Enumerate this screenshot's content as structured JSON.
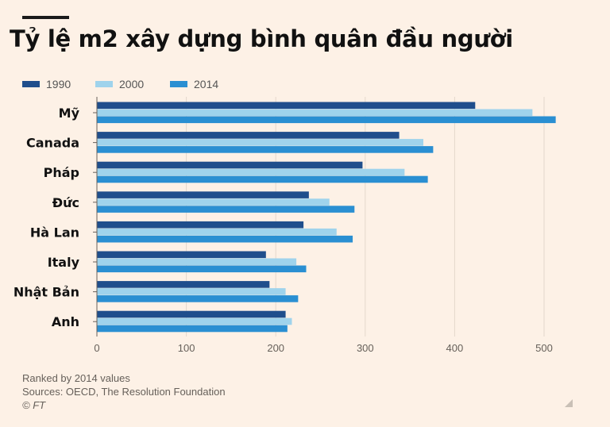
{
  "title": "Tỷ lệ m2 xây dựng bình quân đầu người",
  "legend": [
    {
      "label": "1990",
      "color": "#1f4e8c"
    },
    {
      "label": "2000",
      "color": "#9fd3ec"
    },
    {
      "label": "2014",
      "color": "#2a8fd2"
    }
  ],
  "chart_data": {
    "type": "bar",
    "orientation": "horizontal",
    "categories": [
      "Mỹ",
      "Canada",
      "Pháp",
      "Đức",
      "Hà Lan",
      "Italy",
      "Nhật Bản",
      "Anh"
    ],
    "series": [
      {
        "name": "1990",
        "color": "#1f4e8c",
        "values": [
          423,
          338,
          297,
          237,
          231,
          189,
          193,
          211
        ]
      },
      {
        "name": "2000",
        "color": "#9fd3ec",
        "values": [
          487,
          365,
          344,
          260,
          268,
          223,
          211,
          218
        ]
      },
      {
        "name": "2014",
        "color": "#2a8fd2",
        "values": [
          513,
          376,
          370,
          288,
          286,
          234,
          225,
          213
        ]
      }
    ],
    "xlim": [
      0,
      500
    ],
    "xticks": [
      0,
      100,
      200,
      300,
      400,
      500
    ],
    "grid": "vertical",
    "legend_placement": "top-left"
  },
  "footer": {
    "note": "Ranked by 2014 values",
    "sources": "Sources: OECD, The Resolution Foundation",
    "credit": "© FT"
  }
}
